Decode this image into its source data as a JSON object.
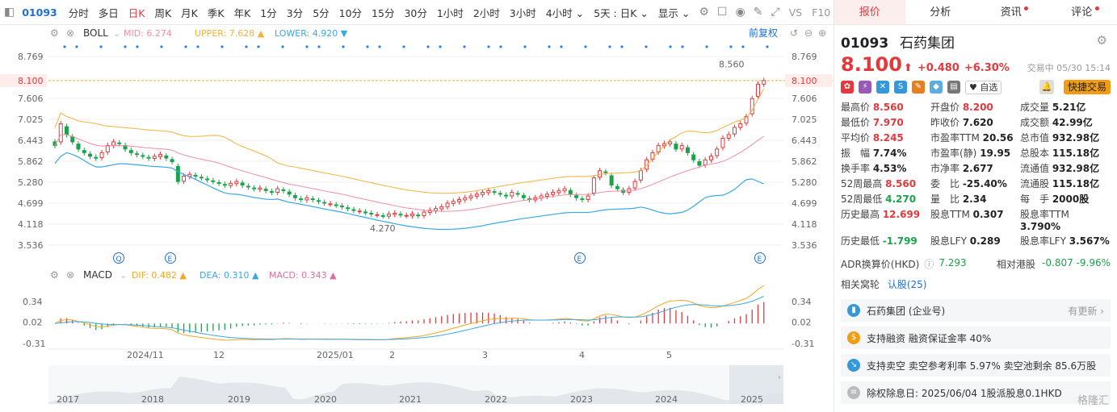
{
  "toolbar": {
    "ticker": "01093",
    "periods": [
      "分时",
      "多日",
      "日K",
      "周K",
      "月K",
      "季K",
      "年K",
      "1分",
      "3分",
      "5分",
      "10分",
      "15分",
      "30分",
      "1小时",
      "2小时",
      "3小时",
      "4小时 ⌄",
      "5天 : 日K ⌄"
    ],
    "active_period": "日K",
    "display": "显示 ⌄",
    "vs": "VS",
    "f10": "F10"
  },
  "indicators": {
    "boll_name": "BOLL",
    "mid_label": "MID:",
    "mid_value": "6.274",
    "upper_label": "UPPER:",
    "upper_value": "7.628",
    "lower_label": "LOWER:",
    "lower_value": "4.920",
    "fuquan": "前复权",
    "macd_name": "MACD",
    "dif_label": "DIF:",
    "dif_value": "0.482",
    "dea_label": "DEA:",
    "dea_value": "0.310",
    "macd_label": "MACD:",
    "macd_value": "0.343"
  },
  "chart_data": {
    "type": "candlestick",
    "price_axis": [
      "8.769",
      "8.100",
      "7.606",
      "7.025",
      "6.443",
      "5.862",
      "5.280",
      "4.699",
      "4.118",
      "3.536"
    ],
    "current_price_label": "8.100",
    "high_label": "8.560",
    "low_label": "4.270",
    "macd_axis": [
      "0.34",
      "0.02",
      "-0.31"
    ],
    "x_labels": [
      "2024/11",
      "12",
      "2025/01",
      "2",
      "3",
      "4",
      "5"
    ],
    "overview_years": [
      "2017",
      "2018",
      "2019",
      "2020",
      "2021",
      "2022",
      "2023",
      "2024",
      "2025"
    ],
    "event_markers": [
      "Q",
      "E",
      "E",
      "E"
    ],
    "closes": [
      6.3,
      6.9,
      6.6,
      6.4,
      6.2,
      6.1,
      6.0,
      5.95,
      6.1,
      6.3,
      6.4,
      6.35,
      6.2,
      6.1,
      6.05,
      6.0,
      5.95,
      6.0,
      6.05,
      5.95,
      5.85,
      5.3,
      5.45,
      5.5,
      5.45,
      5.4,
      5.35,
      5.3,
      5.25,
      5.2,
      5.25,
      5.3,
      5.2,
      5.15,
      5.1,
      5.12,
      5.05,
      5.0,
      5.1,
      5.05,
      4.95,
      4.85,
      4.8,
      4.85,
      4.8,
      4.75,
      4.7,
      4.68,
      4.65,
      4.6,
      4.55,
      4.5,
      4.48,
      4.45,
      4.4,
      4.38,
      4.35,
      4.4,
      4.42,
      4.38,
      4.36,
      4.4,
      4.35,
      4.45,
      4.5,
      4.55,
      4.6,
      4.7,
      4.75,
      4.8,
      4.85,
      4.9,
      4.95,
      5.0,
      5.05,
      5.0,
      4.95,
      4.9,
      5.0,
      4.95,
      4.85,
      4.8,
      4.85,
      4.9,
      4.95,
      5.0,
      5.05,
      5.1,
      4.95,
      4.85,
      4.8,
      4.9,
      5.4,
      5.6,
      5.55,
      5.2,
      5.1,
      5.0,
      5.1,
      5.3,
      5.6,
      5.9,
      6.1,
      6.3,
      6.35,
      6.4,
      6.2,
      6.3,
      6.1,
      5.9,
      5.75,
      5.9,
      6.0,
      6.2,
      6.5,
      6.6,
      6.8,
      6.9,
      7.1,
      7.6,
      8.0,
      8.1
    ]
  },
  "right": {
    "tabs": [
      "报价",
      "分析",
      "资讯",
      "评论"
    ],
    "code": "01093",
    "name": "石药集团",
    "price": "8.100",
    "arrow": "⬆",
    "change": "+0.480",
    "pct": "+6.30%",
    "time": "交易中 05/30 15:14",
    "zixuan": "♥ 自选",
    "kuaijie": "快捷交易",
    "stats": [
      {
        "l": "最高价",
        "v": "8.560",
        "c": "red"
      },
      {
        "l": "开盘价",
        "v": "8.200",
        "c": "red"
      },
      {
        "l": "成交量",
        "v": "5.21亿",
        "c": ""
      },
      {
        "l": "最低价",
        "v": "7.970",
        "c": "red"
      },
      {
        "l": "昨收价",
        "v": "7.620",
        "c": ""
      },
      {
        "l": "成交额",
        "v": "42.99亿",
        "c": ""
      },
      {
        "l": "平均价",
        "v": "8.245",
        "c": "red"
      },
      {
        "l": "市盈率TTM",
        "v": "20.56",
        "c": ""
      },
      {
        "l": "总市值",
        "v": "932.98亿",
        "c": ""
      },
      {
        "l": "振　幅",
        "v": "7.74%",
        "c": ""
      },
      {
        "l": "市盈率(静)",
        "v": "19.95",
        "c": ""
      },
      {
        "l": "总股本",
        "v": "115.18亿",
        "c": ""
      },
      {
        "l": "换手率",
        "v": "4.53%",
        "c": ""
      },
      {
        "l": "市净率",
        "v": "2.677",
        "c": ""
      },
      {
        "l": "流通值",
        "v": "932.98亿",
        "c": ""
      },
      {
        "l": "52周最高",
        "v": "8.560",
        "c": "red"
      },
      {
        "l": "委　比",
        "v": "-25.40%",
        "c": ""
      },
      {
        "l": "流通股",
        "v": "115.18亿",
        "c": ""
      },
      {
        "l": "52周最低",
        "v": "4.270",
        "c": "green"
      },
      {
        "l": "量　比",
        "v": "2.34",
        "c": ""
      },
      {
        "l": "每　手",
        "v": "2000股",
        "c": ""
      },
      {
        "l": "历史最高",
        "v": "12.699",
        "c": "red"
      },
      {
        "l": "股息TTM",
        "v": "0.307",
        "c": ""
      },
      {
        "l": "股息率TTM",
        "v": "3.790%",
        "c": ""
      },
      {
        "l": "历史最低",
        "v": "-1.799",
        "c": "green"
      },
      {
        "l": "股息LFY",
        "v": "0.289",
        "c": ""
      },
      {
        "l": "股息率LFY",
        "v": "3.567%",
        "c": ""
      }
    ],
    "adr_label": "ADR换算价(HKD)",
    "adr_value": "7.293",
    "rel_label": "相对港股",
    "rel_value": "-0.807 -9.96%",
    "related_label": "相关窝轮",
    "related_link": "认股(25)",
    "cards": [
      {
        "t": "石药集团 (企业号)",
        "more": "有更新 ›"
      },
      {
        "t": "支持融资 融资保证金率 40%",
        "more": ""
      },
      {
        "t": "支持卖空 卖空参考利率 5.97% 卖空池剩余 85.6万股",
        "more": ""
      },
      {
        "t": "除权除息日: 2025/06/04 1股派股息0.1HKD",
        "more": ""
      }
    ],
    "watermark": "格隆汇"
  },
  "colors": {
    "up": "#e4393c",
    "down": "#1aa34a",
    "mid": "#f08fa0",
    "upper": "#f5b23a",
    "lower": "#3aa7e6",
    "dif": "#f5a623",
    "dea": "#3aa7e6"
  }
}
